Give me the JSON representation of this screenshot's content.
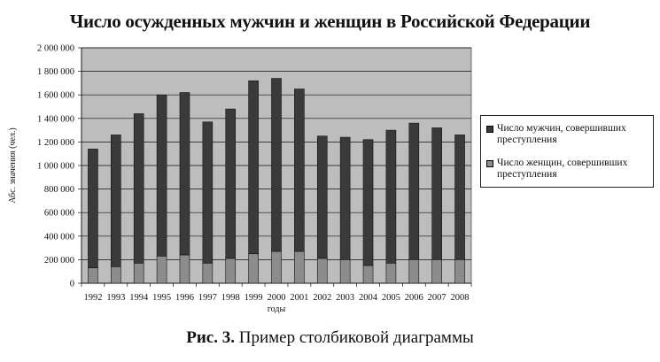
{
  "page": {
    "caption_label": "Рис. 3.",
    "caption_text": "Пример столбиковой диаграммы"
  },
  "chart_data": {
    "type": "bar",
    "stacked": true,
    "title": "Число осужденных мужчин и женщин в Российской Федерации",
    "xlabel": "годы",
    "ylabel": "Абс. значения (чел.)",
    "ylim": [
      0,
      2000000
    ],
    "ytick_step": 200000,
    "ytick_labels": [
      "0",
      "200 000",
      "400 000",
      "600 000",
      "800 000",
      "1 000 000",
      "1 200 000",
      "1 400 000",
      "1 600 000",
      "1 800 000",
      "2 000 000"
    ],
    "grid": true,
    "legend_position": "right",
    "categories": [
      "1992",
      "1993",
      "1994",
      "1995",
      "1996",
      "1997",
      "1998",
      "1999",
      "2000",
      "2001",
      "2002",
      "2003",
      "2004",
      "2005",
      "2006",
      "2007",
      "2008"
    ],
    "series": [
      {
        "name": "Число мужчин, совершивших преступления",
        "color": "#3a3a3a",
        "values": [
          1010000,
          1120000,
          1270000,
          1370000,
          1380000,
          1200000,
          1270000,
          1470000,
          1470000,
          1380000,
          1040000,
          1040000,
          1070000,
          1130000,
          1160000,
          1120000,
          1060000
        ]
      },
      {
        "name": "Число женщин, совершивших преступления",
        "color": "#8c8c8c",
        "values": [
          130000,
          140000,
          170000,
          230000,
          240000,
          170000,
          210000,
          250000,
          270000,
          270000,
          210000,
          200000,
          150000,
          170000,
          200000,
          200000,
          200000
        ]
      }
    ],
    "colors": {
      "plot_background": "#bdbdbd",
      "men": "#3a3a3a",
      "women": "#8c8c8c"
    }
  }
}
